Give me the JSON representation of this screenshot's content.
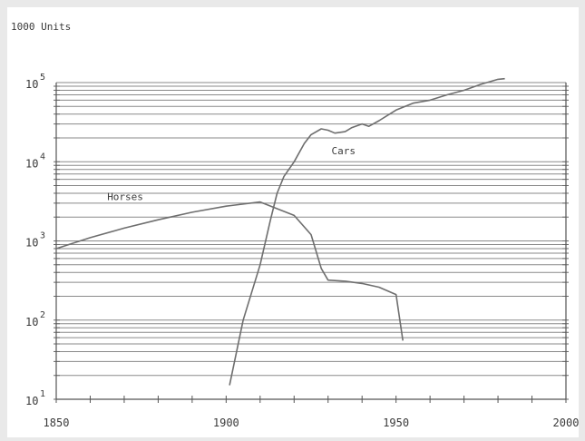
{
  "chart_data": {
    "type": "line",
    "title": "",
    "ylabel": "1000 Units",
    "xlabel": "",
    "x_ticks": [
      "1850",
      "1900",
      "1950",
      "2000"
    ],
    "y_ticks": [
      {
        "base": "10",
        "exp": "1"
      },
      {
        "base": "10",
        "exp": "2"
      },
      {
        "base": "10",
        "exp": "3"
      },
      {
        "base": "10",
        "exp": "4"
      },
      {
        "base": "10",
        "exp": "5"
      }
    ],
    "xlim": [
      1850,
      2000
    ],
    "ylim": [
      10,
      100000
    ],
    "y_scale": "log",
    "grid": true,
    "line_color": "#6e6e6e",
    "background": "#ffffff",
    "series": [
      {
        "name": "Horses",
        "x": [
          1850,
          1860,
          1870,
          1880,
          1890,
          1900,
          1910,
          1920,
          1925,
          1928,
          1930,
          1935,
          1940,
          1945,
          1950,
          1952
        ],
        "y": [
          800,
          1100,
          1450,
          1850,
          2300,
          2750,
          3100,
          2100,
          1200,
          450,
          320,
          310,
          290,
          260,
          210,
          55
        ]
      },
      {
        "name": "Cars",
        "x": [
          1901,
          1905,
          1910,
          1913,
          1915,
          1917,
          1920,
          1923,
          1925,
          1928,
          1930,
          1932,
          1935,
          1937,
          1940,
          1942,
          1945,
          1950,
          1955,
          1960,
          1965,
          1970,
          1975,
          1980,
          1982
        ],
        "y": [
          15,
          100,
          500,
          1800,
          4000,
          6500,
          10000,
          17000,
          22000,
          26000,
          25000,
          23000,
          24000,
          27000,
          30000,
          28000,
          33000,
          45000,
          55000,
          60000,
          70000,
          80000,
          95000,
          110000,
          112000
        ]
      }
    ]
  }
}
